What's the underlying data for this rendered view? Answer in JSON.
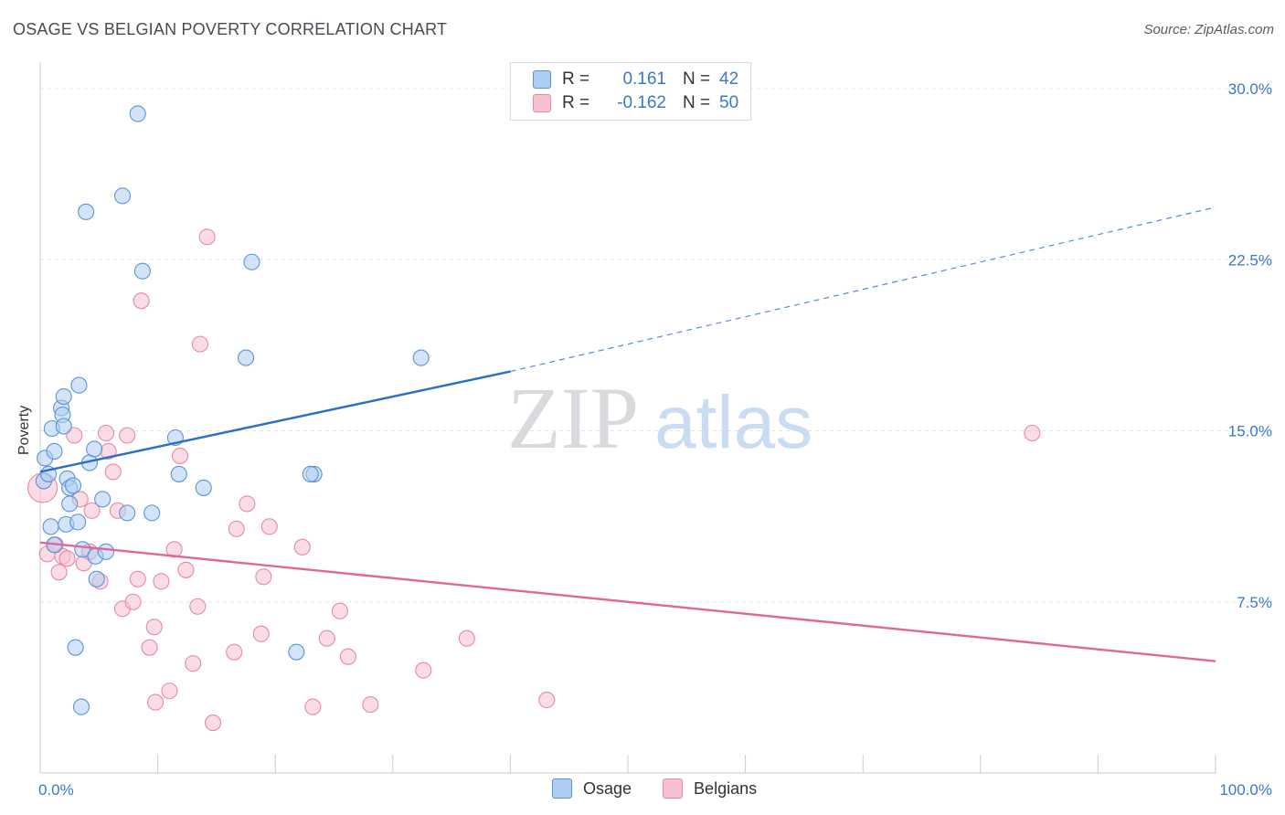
{
  "header": {
    "title": "OSAGE VS BELGIAN POVERTY CORRELATION CHART",
    "source": "Source: ZipAtlas.com"
  },
  "watermark": {
    "zip": "ZIP",
    "atlas": "atlas"
  },
  "legend": {
    "rows": [
      {
        "r_label": "R =",
        "r_value": "0.161",
        "n_label": "N =",
        "n_value": "42"
      },
      {
        "r_label": "R =",
        "r_value": "-0.162",
        "n_label": "N =",
        "n_value": "50"
      }
    ]
  },
  "bottom_legend": {
    "items": [
      "Osage",
      "Belgians"
    ]
  },
  "colors": {
    "osage_fill": "#aecdf2",
    "osage_stroke": "#5b93d6",
    "osage_line": "#2a6fcb",
    "belgians_fill": "#f7c0d0",
    "belgians_stroke": "#e58aa7",
    "belgians_line": "#e0679a",
    "tick_label": "#3a78c8"
  },
  "chart_data": {
    "type": "scatter",
    "title": "OSAGE VS BELGIAN POVERTY CORRELATION CHART",
    "xlabel": "",
    "ylabel": "Poverty",
    "xlim": [
      0,
      100
    ],
    "ylim": [
      0,
      30
    ],
    "x_tick_labels": [
      "0.0%",
      "100.0%"
    ],
    "y_ticks": [
      {
        "value": 7.5,
        "label": "7.5%"
      },
      {
        "value": 15,
        "label": "15.0%"
      },
      {
        "value": 22.5,
        "label": "22.5%"
      },
      {
        "value": 30,
        "label": "30.0%"
      }
    ],
    "series": [
      {
        "name": "Osage",
        "r": 0.161,
        "n": 42,
        "trend": {
          "x0": 0,
          "y0": 13.2,
          "x1": 40,
          "y1": 17.6,
          "dash_to_x": 100,
          "dash_to_y": 24.8
        },
        "points": [
          [
            0.3,
            12.8
          ],
          [
            0.4,
            13.8
          ],
          [
            0.7,
            13.1
          ],
          [
            0.9,
            10.8
          ],
          [
            1.0,
            15.1
          ],
          [
            1.2,
            14.1
          ],
          [
            1.2,
            10.0
          ],
          [
            1.8,
            16.0
          ],
          [
            1.9,
            15.7
          ],
          [
            2.0,
            16.5
          ],
          [
            2.0,
            15.2
          ],
          [
            2.2,
            10.9
          ],
          [
            2.3,
            12.9
          ],
          [
            2.5,
            12.5
          ],
          [
            2.5,
            11.8
          ],
          [
            2.8,
            12.6
          ],
          [
            3.0,
            5.5
          ],
          [
            3.2,
            11.0
          ],
          [
            3.3,
            17.0
          ],
          [
            3.5,
            2.9
          ],
          [
            3.6,
            9.8
          ],
          [
            3.9,
            24.6
          ],
          [
            4.2,
            13.6
          ],
          [
            4.6,
            14.2
          ],
          [
            4.7,
            9.5
          ],
          [
            4.8,
            8.5
          ],
          [
            5.3,
            12.0
          ],
          [
            5.6,
            9.7
          ],
          [
            7.0,
            25.3
          ],
          [
            7.4,
            11.4
          ],
          [
            8.3,
            28.9
          ],
          [
            8.7,
            22.0
          ],
          [
            9.5,
            11.4
          ],
          [
            11.5,
            14.7
          ],
          [
            11.8,
            13.1
          ],
          [
            13.9,
            12.5
          ],
          [
            17.5,
            18.2
          ],
          [
            18.0,
            22.4
          ],
          [
            21.8,
            5.3
          ],
          [
            23.3,
            13.1
          ],
          [
            32.4,
            18.2
          ],
          [
            23.0,
            13.1
          ]
        ]
      },
      {
        "name": "Belgians",
        "r": -0.162,
        "n": 50,
        "trend": {
          "x0": 0,
          "y0": 10.1,
          "x1": 100,
          "y1": 4.9
        },
        "points": [
          [
            0.2,
            12.5
          ],
          [
            0.6,
            9.6
          ],
          [
            1.3,
            10.0
          ],
          [
            1.6,
            8.8
          ],
          [
            1.9,
            9.5
          ],
          [
            2.3,
            9.4
          ],
          [
            2.9,
            14.8
          ],
          [
            3.4,
            12.0
          ],
          [
            3.7,
            9.2
          ],
          [
            4.2,
            9.7
          ],
          [
            4.4,
            11.5
          ],
          [
            5.1,
            8.4
          ],
          [
            5.8,
            14.1
          ],
          [
            6.2,
            13.2
          ],
          [
            6.6,
            11.5
          ],
          [
            7.0,
            7.2
          ],
          [
            7.4,
            14.8
          ],
          [
            7.9,
            7.5
          ],
          [
            8.3,
            8.5
          ],
          [
            8.6,
            20.7
          ],
          [
            9.3,
            5.5
          ],
          [
            9.7,
            6.4
          ],
          [
            9.8,
            3.1
          ],
          [
            10.3,
            8.4
          ],
          [
            11.0,
            3.6
          ],
          [
            11.4,
            9.8
          ],
          [
            11.9,
            13.9
          ],
          [
            12.4,
            8.9
          ],
          [
            13.0,
            4.8
          ],
          [
            13.4,
            7.3
          ],
          [
            14.2,
            23.5
          ],
          [
            14.7,
            2.2
          ],
          [
            16.5,
            5.3
          ],
          [
            16.7,
            10.7
          ],
          [
            17.6,
            11.8
          ],
          [
            18.8,
            6.1
          ],
          [
            19.0,
            8.6
          ],
          [
            19.5,
            10.8
          ],
          [
            22.3,
            9.9
          ],
          [
            23.2,
            2.9
          ],
          [
            24.4,
            5.9
          ],
          [
            25.5,
            7.1
          ],
          [
            26.2,
            5.1
          ],
          [
            28.1,
            3.0
          ],
          [
            32.6,
            4.5
          ],
          [
            36.3,
            5.9
          ],
          [
            43.1,
            3.2
          ],
          [
            13.6,
            18.8
          ],
          [
            84.4,
            14.9
          ],
          [
            5.6,
            14.9
          ]
        ]
      }
    ]
  }
}
